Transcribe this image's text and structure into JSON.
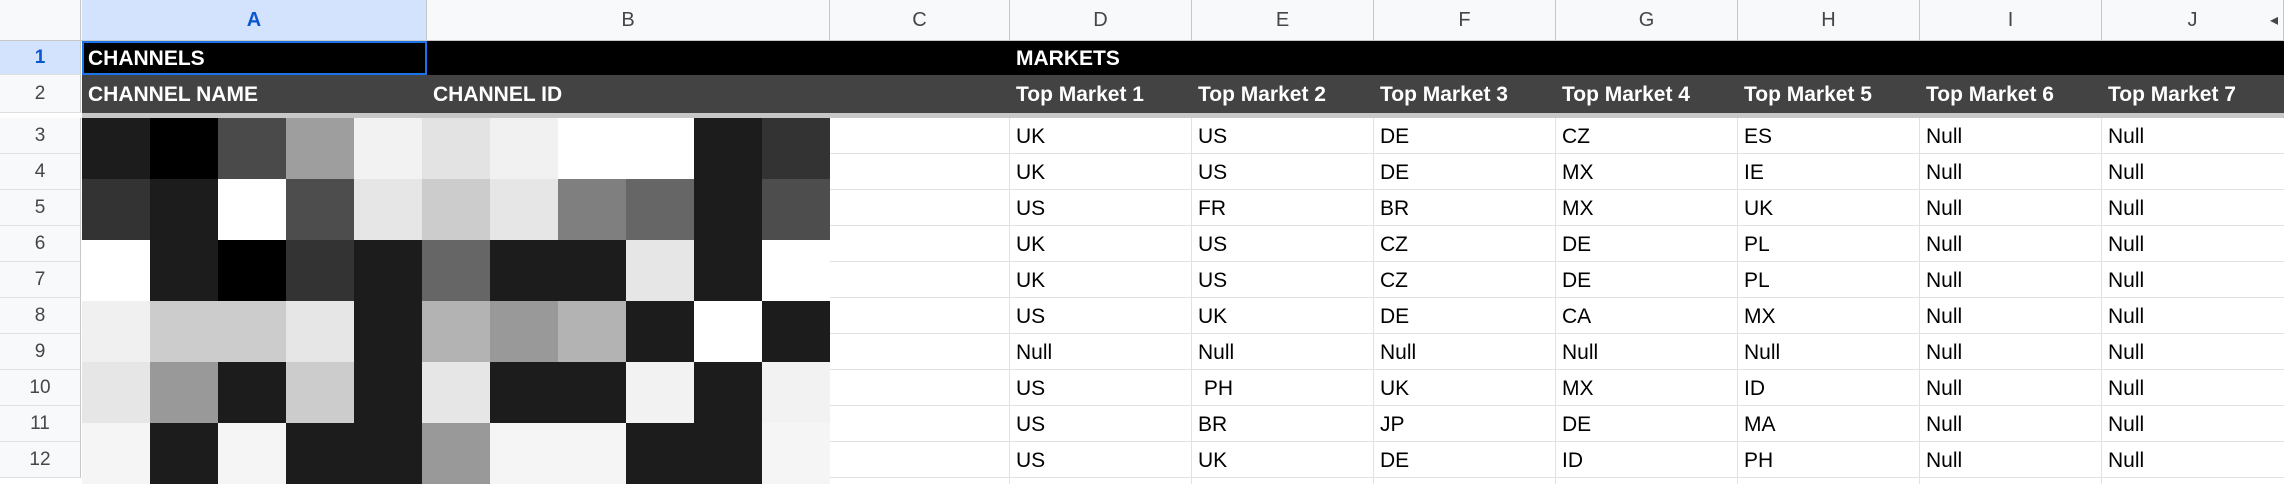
{
  "columns": [
    "A",
    "B",
    "C",
    "D",
    "E",
    "F",
    "G",
    "H",
    "I",
    "J"
  ],
  "selected_column": "A",
  "rows": [
    "1",
    "2",
    "3",
    "4",
    "5",
    "6",
    "7",
    "8",
    "9",
    "10",
    "11",
    "12"
  ],
  "selected_row": "1",
  "headers": {
    "channels": "CHANNELS",
    "markets": "MARKETS",
    "channel_name": "CHANNEL NAME",
    "channel_id": "CHANNEL ID",
    "top_markets": [
      "Top Market 1",
      "Top Market 2",
      "Top Market 3",
      "Top Market 4",
      "Top Market 5",
      "Top Market 6",
      "Top Market 7"
    ]
  },
  "market_rows": [
    [
      "UK",
      "US",
      "DE",
      "CZ",
      "ES",
      "Null",
      "Null"
    ],
    [
      "UK",
      "US",
      "DE",
      "MX",
      "IE",
      "Null",
      "Null"
    ],
    [
      "US",
      "FR",
      "BR",
      "MX",
      "UK",
      "Null",
      "Null"
    ],
    [
      "UK",
      "US",
      "CZ",
      "DE",
      "PL",
      "Null",
      "Null"
    ],
    [
      "UK",
      "US",
      "CZ",
      "DE",
      "PL",
      "Null",
      "Null"
    ],
    [
      "US",
      "UK",
      "DE",
      "CA",
      "MX",
      "Null",
      "Null"
    ],
    [
      "Null",
      "Null",
      "Null",
      "Null",
      "Null",
      "Null",
      "Null"
    ],
    [
      "US",
      " PH",
      "UK",
      "MX",
      "ID",
      "Null",
      "Null"
    ],
    [
      "US",
      "BR",
      "JP",
      "DE",
      "MA",
      "Null",
      "Null"
    ],
    [
      "US",
      "UK",
      "DE",
      "ID",
      "PH",
      "Null",
      "Null"
    ]
  ],
  "colors": {
    "header_black": "#000000",
    "header_gray": "#434343",
    "selection_blue": "#1a73e8",
    "selected_header_bg": "#d3e3fd"
  }
}
